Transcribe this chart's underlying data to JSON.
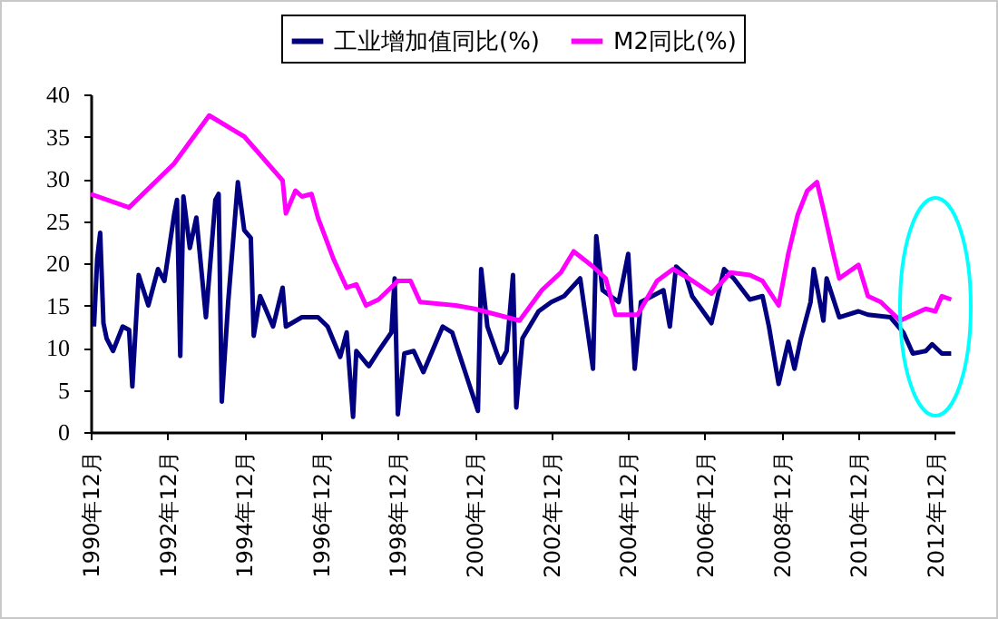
{
  "chart_data": {
    "type": "line",
    "legend": "top",
    "xlim": [
      "1990-12",
      "2013-06"
    ],
    "xticks": [
      {
        "value": "1990-12",
        "label": "1990年12月"
      },
      {
        "value": "1992-12",
        "label": "1992年12月"
      },
      {
        "value": "1994-12",
        "label": "1994年12月"
      },
      {
        "value": "1996-12",
        "label": "1996年12月"
      },
      {
        "value": "1998-12",
        "label": "1998年12月"
      },
      {
        "value": "2000-12",
        "label": "2000年12月"
      },
      {
        "value": "2002-12",
        "label": "2002年12月"
      },
      {
        "value": "2004-12",
        "label": "2004年12月"
      },
      {
        "value": "2006-12",
        "label": "2006年12月"
      },
      {
        "value": "2008-12",
        "label": "2008年12月"
      },
      {
        "value": "2010-12",
        "label": "2010年12月"
      },
      {
        "value": "2012-12",
        "label": "2012年12月"
      }
    ],
    "ylim": [
      0,
      40
    ],
    "yticks": [
      0,
      5,
      10,
      15,
      20,
      25,
      30,
      35,
      40
    ],
    "series": [
      {
        "name": "工业增加值同比(%)",
        "color": "#000080",
        "x": [
          "1991-01",
          "1991-02",
          "1991-03",
          "1991-04",
          "1991-05",
          "1991-07",
          "1991-10",
          "1991-12",
          "1992-01",
          "1992-03",
          "1992-06",
          "1992-09",
          "1992-11",
          "1993-02",
          "1993-03",
          "1993-04",
          "1993-05",
          "1993-07",
          "1993-09",
          "1993-12",
          "1994-03",
          "1994-04",
          "1994-05",
          "1994-07",
          "1994-10",
          "1994-12",
          "1995-02",
          "1995-03",
          "1995-05",
          "1995-09",
          "1995-12",
          "1996-01",
          "1996-06",
          "1996-11",
          "1997-02",
          "1997-06",
          "1997-08",
          "1997-10",
          "1997-11",
          "1998-02",
          "1998-03",
          "1998-06",
          "1998-10",
          "1998-11",
          "1998-12",
          "1999-02",
          "1999-05",
          "1999-08",
          "2000-02",
          "2000-05",
          "2001-01",
          "2001-02",
          "2001-04",
          "2001-08",
          "2001-10",
          "2001-12",
          "2002-01",
          "2002-03",
          "2002-08",
          "2002-12",
          "2003-04",
          "2003-09",
          "2004-01",
          "2004-02",
          "2004-04",
          "2004-09",
          "2004-12",
          "2005-02",
          "2005-04",
          "2005-09",
          "2005-11",
          "2006-01",
          "2006-03",
          "2006-06",
          "2006-08",
          "2007-02",
          "2007-06",
          "2007-09",
          "2008-02",
          "2008-06",
          "2008-08",
          "2008-11",
          "2009-02",
          "2009-04",
          "2009-06",
          "2009-09",
          "2009-10",
          "2010-01",
          "2010-02",
          "2010-06",
          "2010-12",
          "2011-03",
          "2011-10",
          "2012-02",
          "2012-05",
          "2012-09",
          "2012-11",
          "2013-02",
          "2013-05"
        ],
        "values": [
          12.5,
          20.6,
          23.6,
          12.9,
          11.1,
          9.6,
          12.5,
          12.1,
          5.4,
          18.6,
          15.0,
          19.3,
          17.9,
          25.7,
          27.5,
          9.0,
          27.9,
          21.8,
          25.4,
          13.6,
          27.5,
          28.2,
          3.6,
          15.4,
          29.6,
          23.9,
          23.0,
          11.4,
          16.1,
          12.5,
          17.1,
          12.5,
          13.6,
          13.6,
          12.5,
          8.9,
          11.8,
          1.8,
          9.6,
          8.2,
          7.8,
          9.6,
          11.8,
          18.2,
          2.1,
          9.3,
          9.6,
          7.1,
          12.5,
          11.8,
          2.5,
          19.3,
          12.5,
          8.2,
          9.6,
          18.6,
          2.9,
          11.1,
          14.3,
          15.4,
          16.1,
          18.2,
          7.5,
          23.2,
          16.8,
          15.4,
          21.1,
          7.5,
          15.4,
          16.4,
          16.8,
          12.5,
          19.6,
          18.6,
          16.1,
          12.9,
          19.3,
          18.2,
          15.7,
          16.1,
          12.5,
          5.7,
          10.7,
          7.5,
          11.1,
          15.4,
          19.3,
          13.2,
          18.2,
          13.6,
          14.3,
          13.9,
          13.6,
          11.8,
          9.3,
          9.6,
          10.4,
          9.3,
          9.3
        ]
      },
      {
        "name": "M2同比(%)",
        "color": "#ff00ff",
        "x": [
          "1990-12",
          "1991-12",
          "1993-02",
          "1994-01",
          "1994-12",
          "1995-12",
          "1996-01",
          "1996-04",
          "1996-06",
          "1996-09",
          "1996-11",
          "1997-04",
          "1997-08",
          "1997-11",
          "1998-02",
          "1998-06",
          "1998-12",
          "1999-04",
          "1999-07",
          "2000-06",
          "2000-12",
          "2001-10",
          "2002-02",
          "2002-09",
          "2003-03",
          "2003-07",
          "2004-01",
          "2004-05",
          "2004-08",
          "2005-03",
          "2005-09",
          "2006-02",
          "2006-07",
          "2007-02",
          "2007-08",
          "2008-02",
          "2008-06",
          "2008-11",
          "2009-02",
          "2009-05",
          "2009-08",
          "2009-11",
          "2010-01",
          "2010-04",
          "2010-06",
          "2010-12",
          "2011-03",
          "2011-07",
          "2012-01",
          "2012-05",
          "2012-09",
          "2012-12",
          "2013-02",
          "2013-05"
        ],
        "values": [
          28.2,
          26.6,
          31.8,
          37.5,
          35.0,
          29.8,
          25.9,
          28.6,
          27.9,
          28.2,
          25.4,
          20.4,
          17.1,
          17.5,
          15.0,
          15.7,
          17.9,
          17.9,
          15.4,
          15.0,
          14.6,
          13.6,
          13.2,
          16.8,
          18.9,
          21.4,
          19.6,
          18.2,
          13.9,
          13.9,
          17.9,
          19.3,
          18.2,
          16.4,
          18.9,
          18.6,
          17.9,
          15.0,
          21.1,
          25.7,
          28.6,
          29.6,
          26.4,
          21.4,
          18.2,
          19.8,
          16.1,
          15.4,
          13.2,
          13.9,
          14.6,
          14.3,
          16.1,
          15.7
        ]
      }
    ]
  }
}
